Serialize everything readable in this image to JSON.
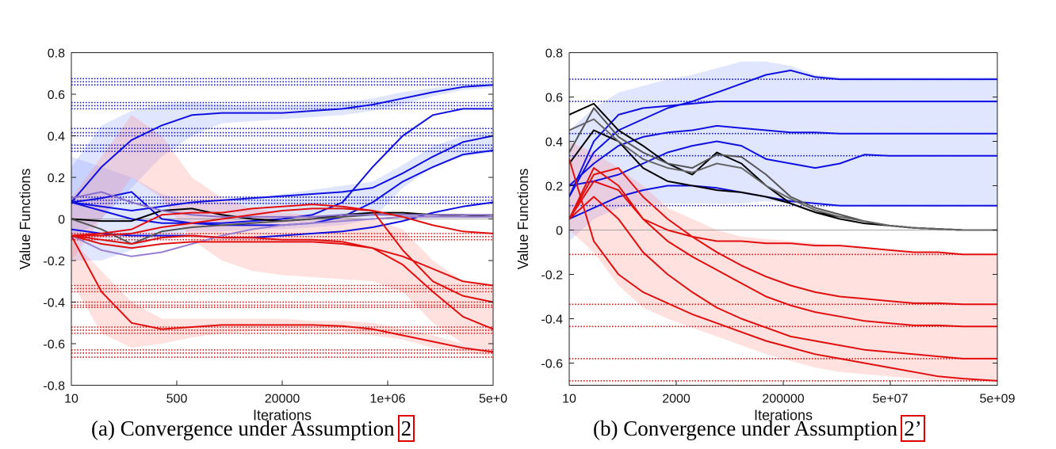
{
  "chart_data": [
    {
      "type": "line",
      "panel": "a",
      "xlabel": "Iterations",
      "ylabel": "Value Functions",
      "x_tick_labels": [
        "10",
        "500",
        "20000",
        "1e+06",
        "5e+0"
      ],
      "x_scale": "log10",
      "xlim": [
        1,
        8
      ],
      "ylim": [
        -0.8,
        0.8
      ],
      "y_ticks": [
        -0.8,
        -0.6,
        -0.4,
        -0.2,
        0,
        0.2,
        0.4,
        0.6,
        0.8
      ],
      "y_tick_labels": [
        "-0.8",
        "-0.6",
        "-0.4",
        "-0.2",
        "0",
        "0.2",
        "0.4",
        "0.6",
        "0.8"
      ],
      "reference_groups": [
        {
          "color": "blue",
          "values": [
            0.645,
            0.66,
            0.675
          ]
        },
        {
          "color": "blue",
          "values": [
            0.53,
            0.545,
            0.56
          ]
        },
        {
          "color": "blue",
          "values": [
            0.4,
            0.415,
            0.435
          ]
        },
        {
          "color": "blue",
          "values": [
            0.325,
            0.34,
            0.355
          ]
        },
        {
          "color": "blue",
          "values": [
            0.075,
            0.09,
            0.105
          ]
        },
        {
          "color": "red",
          "values": [
            -0.07,
            -0.085,
            -0.1
          ]
        },
        {
          "color": "red",
          "values": [
            -0.32,
            -0.335,
            -0.35
          ]
        },
        {
          "color": "red",
          "values": [
            -0.4,
            -0.415,
            -0.425
          ]
        },
        {
          "color": "red",
          "values": [
            -0.52,
            -0.535,
            -0.55
          ]
        },
        {
          "color": "red",
          "values": [
            -0.63,
            -0.645,
            -0.665
          ]
        }
      ],
      "x": [
        1,
        1.5,
        2,
        2.5,
        3,
        3.5,
        4,
        4.5,
        5,
        5.5,
        6,
        6.5,
        7,
        7.5,
        8
      ],
      "series": [
        {
          "name": "blue-1",
          "color": "#1010e0",
          "values": [
            0.08,
            0.25,
            0.38,
            0.45,
            0.5,
            0.51,
            0.51,
            0.51,
            0.52,
            0.53,
            0.55,
            0.58,
            0.61,
            0.635,
            0.645
          ]
        },
        {
          "name": "blue-2",
          "color": "#1010e0",
          "values": [
            0.08,
            0.1,
            0.13,
            0.0,
            -0.02,
            -0.02,
            -0.01,
            0.0,
            0.02,
            0.08,
            0.25,
            0.4,
            0.5,
            0.53,
            0.53
          ]
        },
        {
          "name": "blue-3",
          "color": "#1010e0",
          "values": [
            0.08,
            0.06,
            0.04,
            0.06,
            0.08,
            0.09,
            0.1,
            0.11,
            0.12,
            0.13,
            0.15,
            0.22,
            0.3,
            0.37,
            0.4
          ]
        },
        {
          "name": "blue-4",
          "color": "#1010e0",
          "values": [
            0.08,
            0.04,
            0.0,
            -0.02,
            -0.02,
            -0.03,
            -0.03,
            -0.03,
            -0.02,
            0.01,
            0.08,
            0.18,
            0.25,
            0.31,
            0.33
          ]
        },
        {
          "name": "blue-5",
          "color": "#1010e0",
          "values": [
            -0.05,
            -0.07,
            -0.08,
            -0.08,
            -0.08,
            -0.09,
            -0.09,
            -0.08,
            -0.07,
            -0.06,
            -0.04,
            -0.01,
            0.03,
            0.06,
            0.08
          ]
        },
        {
          "name": "black-1",
          "color": "#000000",
          "values": [
            0.0,
            -0.01,
            -0.01,
            0.04,
            0.05,
            0.02,
            0.0,
            -0.01,
            0.0,
            0.02,
            0.03,
            0.03,
            0.02,
            0.02,
            0.01
          ]
        },
        {
          "name": "gray-1",
          "color": "#555555",
          "values": [
            0.0,
            -0.05,
            -0.12,
            -0.06,
            -0.04,
            -0.03,
            -0.02,
            -0.01,
            0.0,
            0.01,
            0.02,
            0.02,
            0.02,
            0.01,
            0.01
          ]
        },
        {
          "name": "purple-1",
          "color": "#8a70c8",
          "values": [
            0.1,
            0.13,
            0.08,
            0.04,
            0.02,
            0.01,
            0.01,
            0.01,
            0.01,
            0.02,
            0.02,
            0.02,
            0.02,
            0.02,
            0.02
          ]
        },
        {
          "name": "purple-2",
          "color": "#9a80d0",
          "values": [
            -0.08,
            -0.15,
            -0.18,
            -0.16,
            -0.12,
            -0.08,
            -0.05,
            -0.03,
            -0.02,
            -0.01,
            0.0,
            0.01,
            0.01,
            0.01,
            0.01
          ]
        },
        {
          "name": "red-1",
          "color": "#e01010",
          "values": [
            -0.08,
            -0.35,
            -0.5,
            -0.53,
            -0.52,
            -0.51,
            -0.51,
            -0.51,
            -0.51,
            -0.515,
            -0.53,
            -0.56,
            -0.59,
            -0.62,
            -0.64
          ]
        },
        {
          "name": "red-2",
          "color": "#e01010",
          "values": [
            -0.08,
            -0.1,
            -0.12,
            -0.09,
            -0.08,
            -0.09,
            -0.09,
            -0.1,
            -0.1,
            -0.11,
            -0.14,
            -0.22,
            -0.35,
            -0.47,
            -0.53
          ]
        },
        {
          "name": "red-3",
          "color": "#e01010",
          "values": [
            -0.08,
            -0.07,
            -0.05,
            0.02,
            0.03,
            0.03,
            0.05,
            0.06,
            0.07,
            0.06,
            0.04,
            -0.15,
            -0.3,
            -0.37,
            -0.4
          ]
        },
        {
          "name": "red-4",
          "color": "#e01010",
          "values": [
            -0.08,
            -0.12,
            -0.14,
            -0.12,
            -0.11,
            -0.11,
            -0.11,
            -0.11,
            -0.11,
            -0.12,
            -0.14,
            -0.18,
            -0.24,
            -0.3,
            -0.32
          ]
        },
        {
          "name": "red-5",
          "color": "#e01010",
          "values": [
            -0.08,
            -0.08,
            -0.07,
            -0.04,
            -0.02,
            0.0,
            0.02,
            0.04,
            0.05,
            0.05,
            0.04,
            0.01,
            -0.03,
            -0.06,
            -0.07
          ]
        }
      ],
      "bands": [
        {
          "color": "blue",
          "upper": [
            0.25,
            0.45,
            0.52,
            0.55,
            0.56,
            0.55,
            0.54,
            0.54,
            0.55,
            0.56,
            0.58,
            0.61,
            0.63,
            0.65,
            0.66
          ],
          "lower": [
            -0.1,
            0.0,
            0.15,
            0.3,
            0.4,
            0.46,
            0.47,
            0.48,
            0.49,
            0.5,
            0.52,
            0.55,
            0.59,
            0.62,
            0.63
          ]
        },
        {
          "color": "blue",
          "upper": [
            0.3,
            0.25,
            0.2,
            0.12,
            0.08,
            0.08,
            0.1,
            0.12,
            0.14,
            0.16,
            0.18,
            0.26,
            0.35,
            0.4,
            0.42
          ],
          "lower": [
            -0.2,
            -0.2,
            -0.15,
            -0.08,
            -0.06,
            -0.06,
            -0.05,
            -0.05,
            -0.04,
            -0.03,
            0.0,
            0.15,
            0.25,
            0.3,
            0.32
          ]
        },
        {
          "color": "red",
          "upper": [
            0.1,
            0.3,
            0.5,
            0.4,
            0.2,
            0.1,
            0.05,
            0.03,
            0.02,
            0.01,
            0.0,
            -0.05,
            -0.2,
            -0.3,
            -0.32
          ]
        },
        {
          "color": "red",
          "upper": [
            -0.1,
            -0.25,
            -0.4,
            -0.48,
            -0.48,
            -0.48,
            -0.48,
            -0.48,
            -0.49,
            -0.49,
            -0.5,
            -0.53,
            -0.56,
            -0.6,
            -0.62
          ],
          "lower": [
            -0.3,
            -0.55,
            -0.62,
            -0.6,
            -0.57,
            -0.55,
            -0.54,
            -0.54,
            -0.54,
            -0.54,
            -0.56,
            -0.58,
            -0.62,
            -0.64,
            -0.66
          ]
        }
      ]
    },
    {
      "type": "line",
      "panel": "b",
      "xlabel": "Iterations",
      "ylabel": "Value Functions",
      "x_tick_labels": [
        "10",
        "2000",
        "200000",
        "5e+07",
        "5e+09"
      ],
      "x_scale": "log10",
      "xlim": [
        1,
        9.7
      ],
      "ylim": [
        -0.7,
        0.8
      ],
      "y_ticks": [
        -0.6,
        -0.4,
        -0.2,
        0,
        0.2,
        0.4,
        0.6,
        0.8
      ],
      "y_tick_labels": [
        "-0.6",
        "-0.4",
        "-0.2",
        "0",
        "0.2",
        "0.4",
        "0.6",
        "0.8"
      ],
      "reference_lines": [
        {
          "color": "blue",
          "value": 0.68
        },
        {
          "color": "blue",
          "value": 0.58
        },
        {
          "color": "blue",
          "value": 0.435
        },
        {
          "color": "blue",
          "value": 0.335
        },
        {
          "color": "blue",
          "value": 0.11
        },
        {
          "color": "red",
          "value": -0.11
        },
        {
          "color": "red",
          "value": -0.335
        },
        {
          "color": "red",
          "value": -0.435
        },
        {
          "color": "red",
          "value": -0.58
        },
        {
          "color": "red",
          "value": -0.68
        }
      ],
      "x": [
        1,
        1.5,
        2,
        2.5,
        3,
        3.5,
        4,
        4.5,
        5,
        5.5,
        6,
        6.5,
        7,
        7.5,
        8,
        8.5,
        9,
        9.7
      ],
      "series": [
        {
          "name": "blue-1",
          "color": "#1010e0",
          "values": [
            0.15,
            0.35,
            0.45,
            0.5,
            0.55,
            0.58,
            0.62,
            0.66,
            0.7,
            0.72,
            0.69,
            0.68,
            0.68,
            0.68,
            0.68,
            0.68,
            0.68,
            0.68
          ]
        },
        {
          "name": "blue-2",
          "color": "#1010e0",
          "values": [
            0.15,
            0.4,
            0.52,
            0.55,
            0.56,
            0.57,
            0.58,
            0.58,
            0.58,
            0.58,
            0.58,
            0.58,
            0.58,
            0.58,
            0.58,
            0.58,
            0.58,
            0.58
          ]
        },
        {
          "name": "blue-3",
          "color": "#1010e0",
          "values": [
            0.2,
            0.3,
            0.38,
            0.42,
            0.44,
            0.45,
            0.47,
            0.46,
            0.45,
            0.44,
            0.44,
            0.435,
            0.435,
            0.435,
            0.435,
            0.435,
            0.435,
            0.435
          ]
        },
        {
          "name": "blue-4",
          "color": "#1010e0",
          "values": [
            0.2,
            0.22,
            0.25,
            0.3,
            0.35,
            0.38,
            0.4,
            0.38,
            0.32,
            0.3,
            0.28,
            0.3,
            0.34,
            0.335,
            0.335,
            0.335,
            0.335,
            0.335
          ]
        },
        {
          "name": "blue-5",
          "color": "#1010e0",
          "values": [
            0.05,
            0.1,
            0.15,
            0.18,
            0.2,
            0.2,
            0.19,
            0.17,
            0.15,
            0.13,
            0.12,
            0.11,
            0.11,
            0.11,
            0.11,
            0.11,
            0.11,
            0.11
          ]
        },
        {
          "name": "black-1",
          "color": "#000000",
          "values": [
            0.52,
            0.57,
            0.45,
            0.38,
            0.3,
            0.25,
            0.35,
            0.3,
            0.2,
            0.12,
            0.08,
            0.05,
            0.03,
            0.02,
            0.01,
            0.005,
            0.0,
            0.0
          ]
        },
        {
          "name": "black-2",
          "color": "#000000",
          "values": [
            0.3,
            0.45,
            0.4,
            0.28,
            0.22,
            0.2,
            0.18,
            0.17,
            0.15,
            0.12,
            0.08,
            0.06,
            0.04,
            0.02,
            0.01,
            0.005,
            0.0,
            0.0
          ]
        },
        {
          "name": "gray-1",
          "color": "#555555",
          "values": [
            0.35,
            0.55,
            0.42,
            0.35,
            0.3,
            0.28,
            0.34,
            0.33,
            0.25,
            0.15,
            0.1,
            0.07,
            0.04,
            0.02,
            0.01,
            0.005,
            0.0,
            0.0
          ]
        },
        {
          "name": "gray-2",
          "color": "#666666",
          "values": [
            0.45,
            0.5,
            0.4,
            0.32,
            0.28,
            0.26,
            0.3,
            0.28,
            0.2,
            0.14,
            0.09,
            0.06,
            0.04,
            0.02,
            0.01,
            0.005,
            0.0,
            0.0
          ]
        },
        {
          "name": "red-1",
          "color": "#e01010",
          "values": [
            0.32,
            -0.05,
            -0.2,
            -0.28,
            -0.33,
            -0.38,
            -0.42,
            -0.46,
            -0.5,
            -0.53,
            -0.56,
            -0.58,
            -0.6,
            -0.62,
            -0.64,
            -0.66,
            -0.67,
            -0.68
          ]
        },
        {
          "name": "red-2",
          "color": "#e01010",
          "values": [
            0.05,
            0.15,
            0.05,
            -0.1,
            -0.2,
            -0.28,
            -0.35,
            -0.4,
            -0.44,
            -0.48,
            -0.5,
            -0.52,
            -0.54,
            -0.55,
            -0.56,
            -0.57,
            -0.58,
            -0.58
          ]
        },
        {
          "name": "red-3",
          "color": "#e01010",
          "values": [
            0.05,
            0.22,
            0.18,
            0.05,
            -0.05,
            -0.12,
            -0.18,
            -0.24,
            -0.3,
            -0.34,
            -0.37,
            -0.39,
            -0.41,
            -0.42,
            -0.43,
            -0.43,
            -0.435,
            -0.435
          ]
        },
        {
          "name": "red-4",
          "color": "#e01010",
          "values": [
            0.05,
            0.25,
            0.28,
            0.15,
            0.05,
            -0.03,
            -0.1,
            -0.16,
            -0.21,
            -0.25,
            -0.28,
            -0.3,
            -0.31,
            -0.32,
            -0.33,
            -0.33,
            -0.335,
            -0.335
          ]
        },
        {
          "name": "red-5",
          "color": "#e01010",
          "values": [
            0.05,
            0.28,
            0.2,
            0.05,
            0.0,
            -0.03,
            -0.05,
            -0.05,
            -0.06,
            -0.06,
            -0.07,
            -0.07,
            -0.08,
            -0.09,
            -0.1,
            -0.1,
            -0.11,
            -0.11
          ]
        }
      ],
      "bands": [
        {
          "color": "blue",
          "upper": [
            0.45,
            0.55,
            0.62,
            0.65,
            0.68,
            0.7,
            0.73,
            0.76,
            0.76,
            0.74,
            0.7,
            0.69,
            0.69,
            0.69,
            0.69,
            0.69,
            0.69,
            0.69
          ],
          "lower": [
            -0.05,
            0.05,
            0.1,
            0.12,
            0.12,
            0.12,
            0.12,
            0.12,
            0.13,
            0.12,
            0.12,
            0.11,
            0.11,
            0.11,
            0.11,
            0.11,
            0.11,
            0.11
          ]
        },
        {
          "color": "red",
          "upper": [
            0.4,
            0.35,
            0.28,
            0.2,
            0.1,
            0.05,
            0.0,
            -0.03,
            -0.04,
            -0.05,
            -0.06,
            -0.07,
            -0.08,
            -0.09,
            -0.1,
            -0.1,
            -0.11,
            -0.11
          ],
          "lower": [
            0.0,
            -0.1,
            -0.25,
            -0.35,
            -0.4,
            -0.44,
            -0.48,
            -0.52,
            -0.56,
            -0.59,
            -0.62,
            -0.64,
            -0.65,
            -0.66,
            -0.67,
            -0.68,
            -0.68,
            -0.68
          ]
        }
      ]
    }
  ],
  "captions": {
    "a_text": "(a) Convergence under Assumption",
    "a_ref": "2",
    "b_text": "(b) Convergence under Assumption",
    "b_ref": "2’"
  }
}
